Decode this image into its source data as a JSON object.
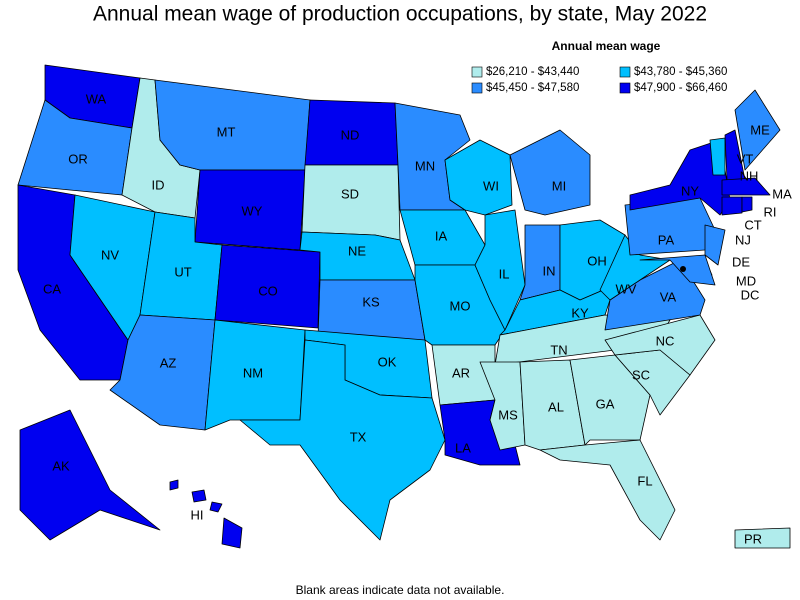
{
  "title": "Annual mean wage of production occupations, by state, May 2022",
  "legend": {
    "title": "Annual mean wage",
    "items": [
      {
        "label": "$26,210 - $43,440",
        "color": "#b0ecec"
      },
      {
        "label": "$43,780 - $45,360",
        "color": "#00bfff"
      },
      {
        "label": "$45,450 - $47,580",
        "color": "#2a8cff"
      },
      {
        "label": "$47,900 - $66,460",
        "color": "#0000f0"
      }
    ]
  },
  "states": [
    {
      "abbr": "WA",
      "color": "#0000f0"
    },
    {
      "abbr": "OR",
      "color": "#2a8cff"
    },
    {
      "abbr": "CA",
      "color": "#0000f0"
    },
    {
      "abbr": "NV",
      "color": "#00bfff"
    },
    {
      "abbr": "ID",
      "color": "#b0ecec"
    },
    {
      "abbr": "MT",
      "color": "#2a8cff"
    },
    {
      "abbr": "WY",
      "color": "#0000f0"
    },
    {
      "abbr": "UT",
      "color": "#00bfff"
    },
    {
      "abbr": "CO",
      "color": "#0000f0"
    },
    {
      "abbr": "AZ",
      "color": "#2a8cff"
    },
    {
      "abbr": "NM",
      "color": "#00bfff"
    },
    {
      "abbr": "ND",
      "color": "#0000f0"
    },
    {
      "abbr": "SD",
      "color": "#b0ecec"
    },
    {
      "abbr": "NE",
      "color": "#00bfff"
    },
    {
      "abbr": "KS",
      "color": "#2a8cff"
    },
    {
      "abbr": "OK",
      "color": "#00bfff"
    },
    {
      "abbr": "TX",
      "color": "#00bfff"
    },
    {
      "abbr": "MN",
      "color": "#2a8cff"
    },
    {
      "abbr": "IA",
      "color": "#00bfff"
    },
    {
      "abbr": "MO",
      "color": "#00bfff"
    },
    {
      "abbr": "AR",
      "color": "#b0ecec"
    },
    {
      "abbr": "LA",
      "color": "#0000f0"
    },
    {
      "abbr": "WI",
      "color": "#00bfff"
    },
    {
      "abbr": "IL",
      "color": "#00bfff"
    },
    {
      "abbr": "MI",
      "color": "#2a8cff"
    },
    {
      "abbr": "IN",
      "color": "#2a8cff"
    },
    {
      "abbr": "OH",
      "color": "#00bfff"
    },
    {
      "abbr": "KY",
      "color": "#00bfff"
    },
    {
      "abbr": "TN",
      "color": "#b0ecec"
    },
    {
      "abbr": "MS",
      "color": "#b0ecec"
    },
    {
      "abbr": "AL",
      "color": "#b0ecec"
    },
    {
      "abbr": "GA",
      "color": "#b0ecec"
    },
    {
      "abbr": "FL",
      "color": "#b0ecec"
    },
    {
      "abbr": "SC",
      "color": "#b0ecec"
    },
    {
      "abbr": "NC",
      "color": "#b0ecec"
    },
    {
      "abbr": "VA",
      "color": "#2a8cff"
    },
    {
      "abbr": "WV",
      "color": "#00bfff"
    },
    {
      "abbr": "PA",
      "color": "#2a8cff"
    },
    {
      "abbr": "NY",
      "color": "#0000f0"
    },
    {
      "abbr": "NJ",
      "color": "#2a8cff"
    },
    {
      "abbr": "DE",
      "color": "#2a8cff"
    },
    {
      "abbr": "MD",
      "color": "#2a8cff"
    },
    {
      "abbr": "VT",
      "color": "#00bfff"
    },
    {
      "abbr": "NH",
      "color": "#0000f0"
    },
    {
      "abbr": "ME",
      "color": "#2a8cff"
    },
    {
      "abbr": "MA",
      "color": "#0000f0"
    },
    {
      "abbr": "CT",
      "color": "#0000f0"
    },
    {
      "abbr": "RI",
      "color": "#0000f0"
    },
    {
      "abbr": "AK",
      "color": "#0000f0"
    },
    {
      "abbr": "HI",
      "color": "#0000f0"
    },
    {
      "abbr": "PR",
      "color": "#b0ecec"
    },
    {
      "abbr": "DC"
    }
  ],
  "note": "Blank areas indicate data not available."
}
